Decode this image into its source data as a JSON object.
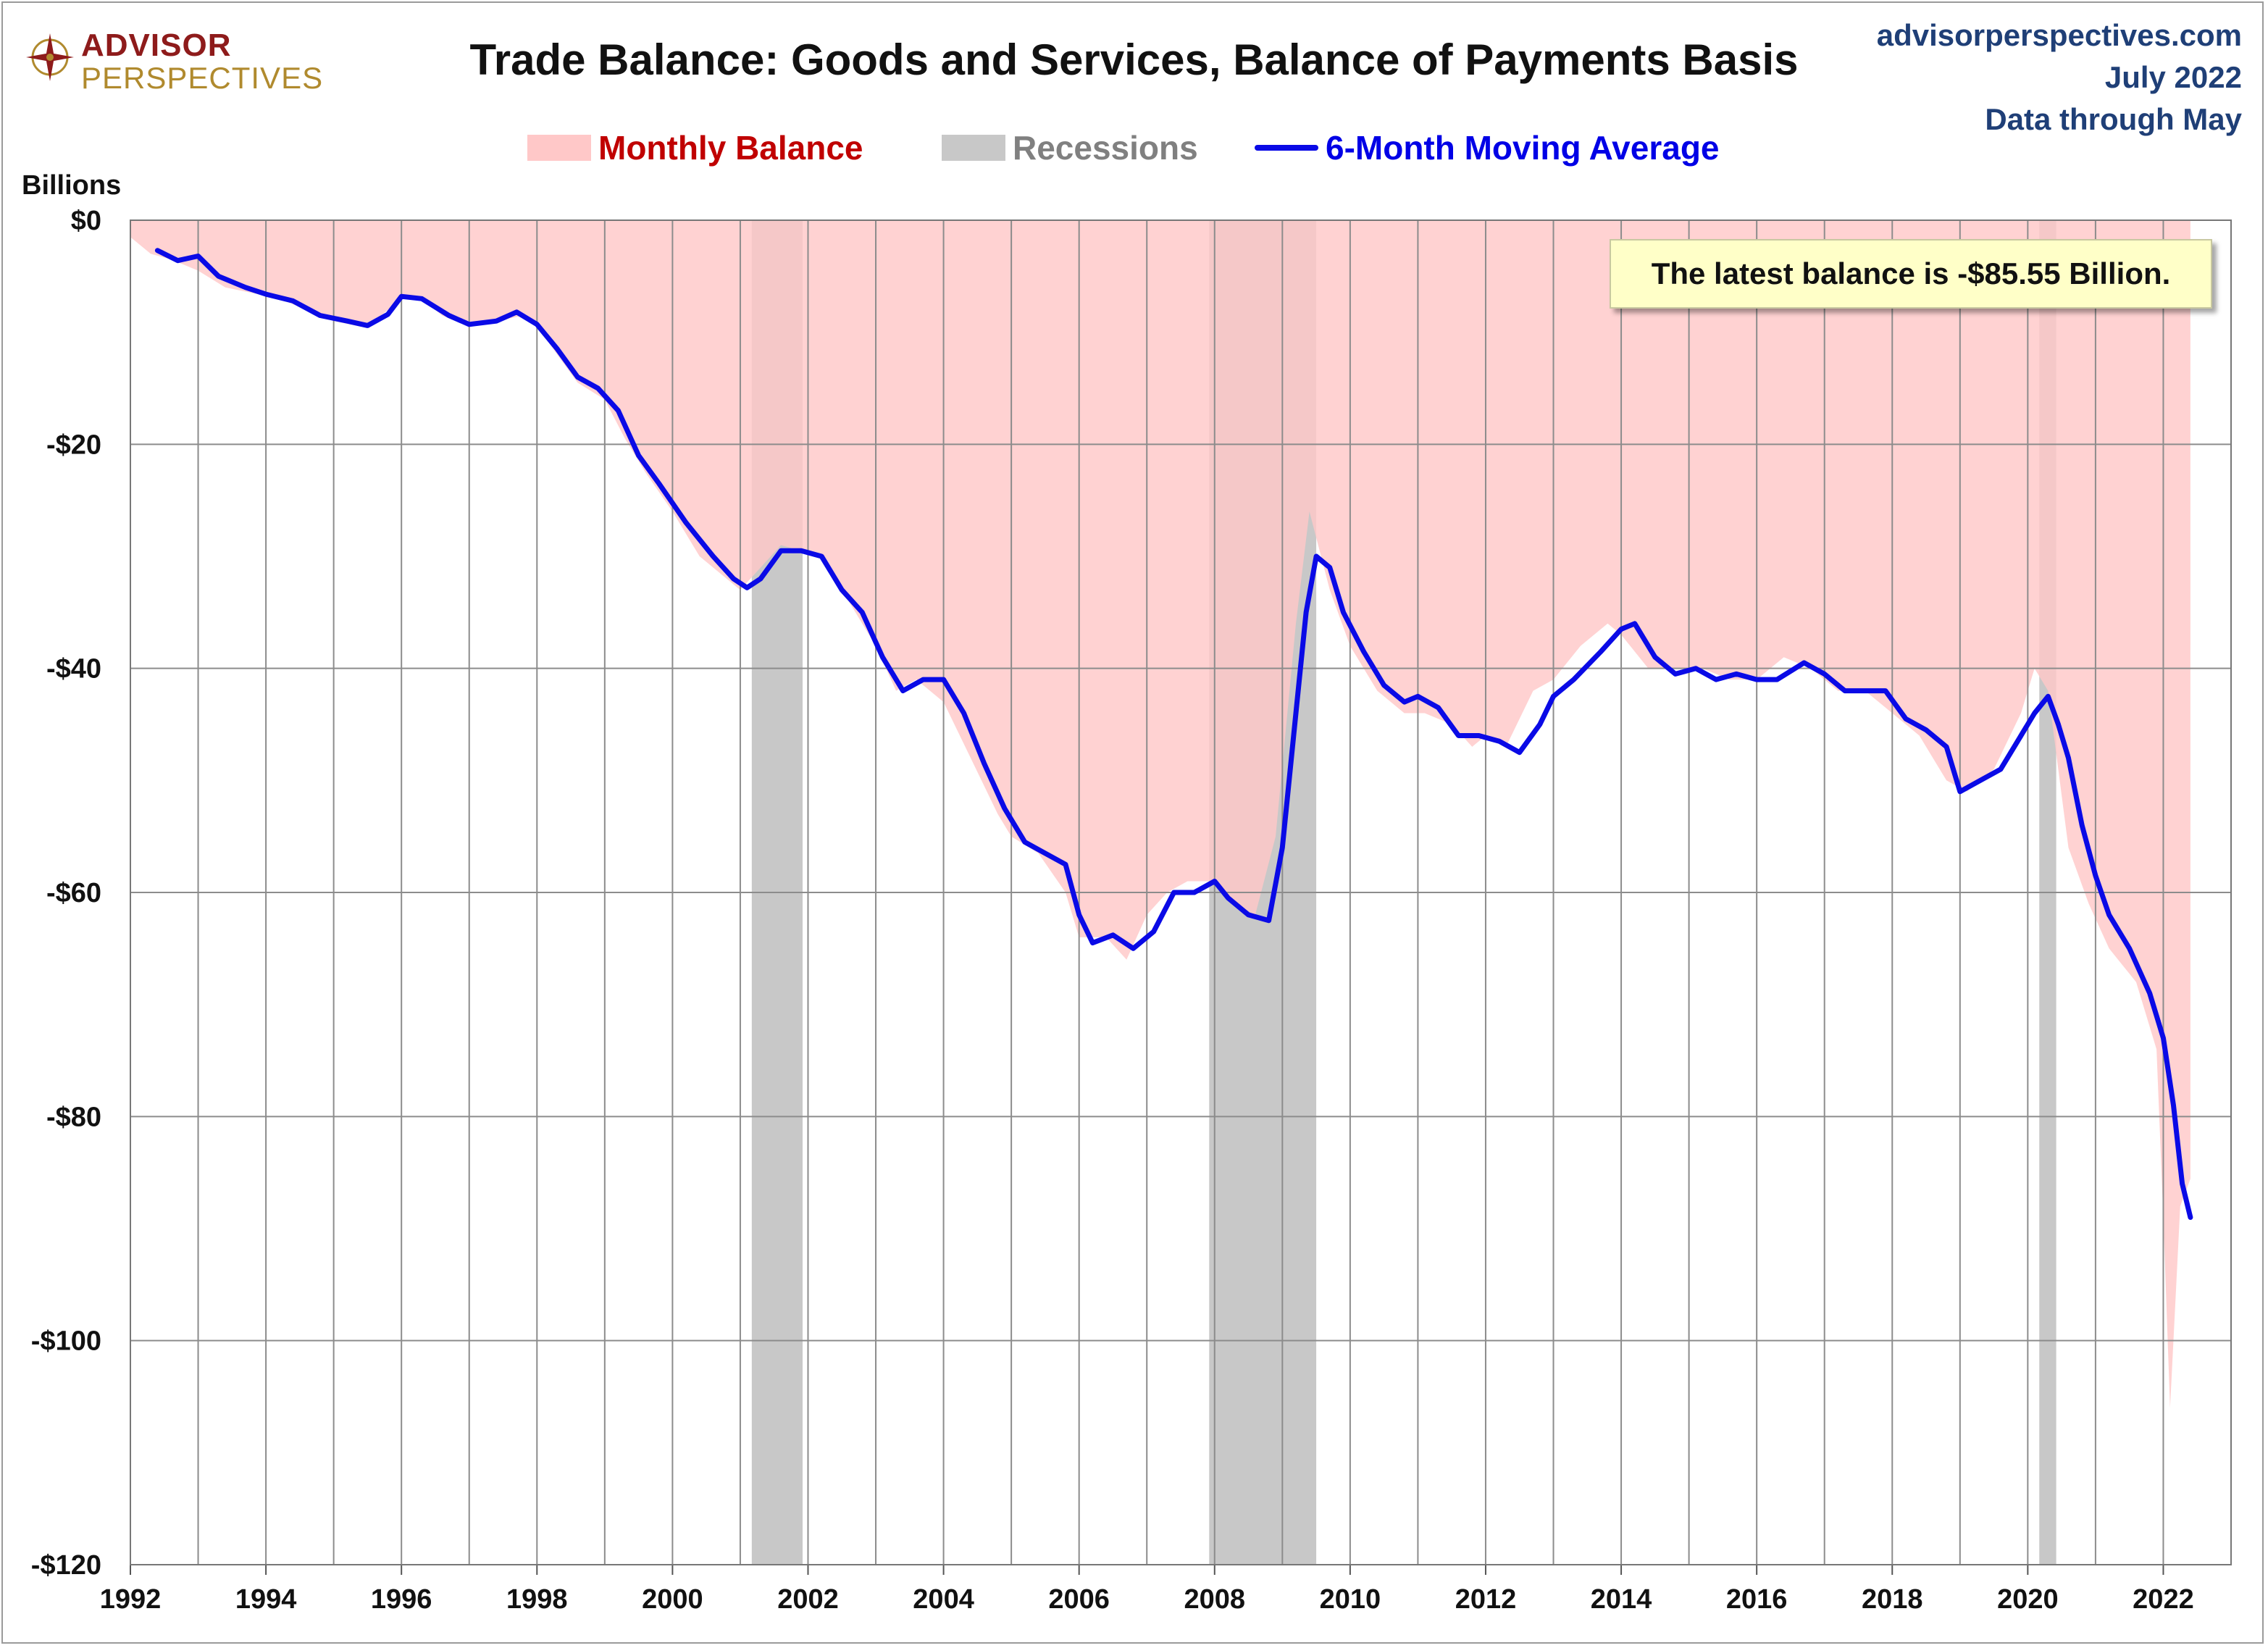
{
  "logo": {
    "line1": "ADVISOR",
    "line2": "PERSPECTIVES",
    "colors": {
      "primary": "#8e1b1b",
      "secondary": "#b08a2e"
    }
  },
  "header": {
    "title": "Trade Balance: Goods and Services, Balance of Payments Basis",
    "source": "advisorperspectives.com",
    "date": "July 2022",
    "coverage": "Data through May"
  },
  "legend": {
    "monthly": "Monthly Balance",
    "recessions": "Recessions",
    "moving_average": "6-Month Moving Average"
  },
  "annotation": {
    "text": "The latest balance is -$85.55 Billion."
  },
  "colors": {
    "fill": "#ffc8c8",
    "recession": "#c8c8c8",
    "line": "#0a0ae6",
    "grid": "#8c8c8c",
    "monthly_label": "#c00000",
    "recession_label": "#808080",
    "ma_label": "#0000e6"
  },
  "chart_data": {
    "type": "area",
    "title": "Trade Balance: Goods and Services, Balance of Payments Basis",
    "ylabel": "Billions",
    "xlabel": "",
    "xlim": [
      1992,
      2023
    ],
    "ylim": [
      -120,
      0
    ],
    "x_ticks": [
      "1992",
      "1994",
      "1996",
      "1998",
      "2000",
      "2002",
      "2004",
      "2006",
      "2008",
      "2010",
      "2012",
      "2014",
      "2016",
      "2018",
      "2020",
      "2022"
    ],
    "y_ticks": [
      "$0",
      "-$20",
      "-$40",
      "-$60",
      "-$80",
      "-$100",
      "-$120"
    ],
    "grid": true,
    "legend_placement": "top-center",
    "recessions": [
      [
        2001.17,
        2001.92
      ],
      [
        2007.92,
        2009.5
      ],
      [
        2020.17,
        2020.42
      ]
    ],
    "series": [
      {
        "name": "Monthly Balance",
        "type": "area",
        "points": [
          [
            1992.0,
            -1.5
          ],
          [
            1992.3,
            -3.0
          ],
          [
            1992.6,
            -3.5
          ],
          [
            1993.0,
            -4.5
          ],
          [
            1993.4,
            -6.0
          ],
          [
            1993.8,
            -6.5
          ],
          [
            1994.2,
            -7.0
          ],
          [
            1994.6,
            -8.0
          ],
          [
            1995.0,
            -9.0
          ],
          [
            1995.4,
            -9.5
          ],
          [
            1995.7,
            -8.5
          ],
          [
            1996.0,
            -7.0
          ],
          [
            1996.3,
            -7.0
          ],
          [
            1996.6,
            -8.5
          ],
          [
            1997.0,
            -9.5
          ],
          [
            1997.4,
            -9.0
          ],
          [
            1997.8,
            -8.5
          ],
          [
            1998.0,
            -9.5
          ],
          [
            1998.3,
            -12.0
          ],
          [
            1998.6,
            -14.5
          ],
          [
            1999.0,
            -16.0
          ],
          [
            1999.3,
            -19.5
          ],
          [
            1999.6,
            -22.5
          ],
          [
            2000.0,
            -26.0
          ],
          [
            2000.4,
            -30.0
          ],
          [
            2000.8,
            -32.0
          ],
          [
            2001.0,
            -33.0
          ],
          [
            2001.3,
            -31.0
          ],
          [
            2001.6,
            -29.0
          ],
          [
            2001.9,
            -29.5
          ],
          [
            2002.2,
            -30.0
          ],
          [
            2002.6,
            -34.0
          ],
          [
            2003.0,
            -38.0
          ],
          [
            2003.3,
            -42.0
          ],
          [
            2003.6,
            -41.0
          ],
          [
            2004.0,
            -43.0
          ],
          [
            2004.4,
            -48.0
          ],
          [
            2004.8,
            -53.0
          ],
          [
            2005.0,
            -55.0
          ],
          [
            2005.4,
            -56.5
          ],
          [
            2005.8,
            -60.0
          ],
          [
            2006.0,
            -64.0
          ],
          [
            2006.4,
            -64.0
          ],
          [
            2006.7,
            -66.0
          ],
          [
            2007.0,
            -62.0
          ],
          [
            2007.3,
            -60.0
          ],
          [
            2007.6,
            -59.0
          ],
          [
            2008.0,
            -59.0
          ],
          [
            2008.3,
            -61.0
          ],
          [
            2008.6,
            -62.0
          ],
          [
            2008.9,
            -55.0
          ],
          [
            2009.2,
            -36.0
          ],
          [
            2009.4,
            -26.0
          ],
          [
            2009.7,
            -33.0
          ],
          [
            2010.0,
            -38.0
          ],
          [
            2010.4,
            -42.0
          ],
          [
            2010.8,
            -44.0
          ],
          [
            2011.1,
            -44.0
          ],
          [
            2011.5,
            -45.0
          ],
          [
            2011.8,
            -47.0
          ],
          [
            2012.0,
            -46.0
          ],
          [
            2012.3,
            -47.0
          ],
          [
            2012.7,
            -42.0
          ],
          [
            2013.0,
            -41.0
          ],
          [
            2013.4,
            -38.0
          ],
          [
            2013.8,
            -36.0
          ],
          [
            2014.0,
            -37.0
          ],
          [
            2014.4,
            -40.0
          ],
          [
            2014.8,
            -40.0
          ],
          [
            2015.2,
            -40.0
          ],
          [
            2015.6,
            -41.0
          ],
          [
            2016.0,
            -41.0
          ],
          [
            2016.4,
            -39.0
          ],
          [
            2016.8,
            -40.0
          ],
          [
            2017.2,
            -42.0
          ],
          [
            2017.6,
            -42.0
          ],
          [
            2018.0,
            -44.0
          ],
          [
            2018.4,
            -46.0
          ],
          [
            2018.8,
            -50.0
          ],
          [
            2019.1,
            -51.0
          ],
          [
            2019.5,
            -49.0
          ],
          [
            2019.9,
            -44.0
          ],
          [
            2020.1,
            -40.0
          ],
          [
            2020.3,
            -42.0
          ],
          [
            2020.6,
            -56.0
          ],
          [
            2020.9,
            -61.0
          ],
          [
            2021.2,
            -65.0
          ],
          [
            2021.6,
            -68.0
          ],
          [
            2021.9,
            -74.0
          ],
          [
            2022.0,
            -89.0
          ],
          [
            2022.1,
            -106.0
          ],
          [
            2022.25,
            -88.0
          ],
          [
            2022.4,
            -85.55
          ]
        ]
      },
      {
        "name": "6-Month Moving Average",
        "type": "line",
        "points": [
          [
            1992.4,
            -2.7
          ],
          [
            1992.7,
            -3.6
          ],
          [
            1993.0,
            -3.2
          ],
          [
            1993.3,
            -5.0
          ],
          [
            1993.7,
            -6.0
          ],
          [
            1994.0,
            -6.6
          ],
          [
            1994.4,
            -7.2
          ],
          [
            1994.8,
            -8.5
          ],
          [
            1995.2,
            -9.0
          ],
          [
            1995.5,
            -9.4
          ],
          [
            1995.8,
            -8.4
          ],
          [
            1996.0,
            -6.8
          ],
          [
            1996.3,
            -7.0
          ],
          [
            1996.7,
            -8.5
          ],
          [
            1997.0,
            -9.3
          ],
          [
            1997.4,
            -9.0
          ],
          [
            1997.7,
            -8.2
          ],
          [
            1998.0,
            -9.3
          ],
          [
            1998.3,
            -11.5
          ],
          [
            1998.6,
            -14.0
          ],
          [
            1998.9,
            -15.0
          ],
          [
            1999.2,
            -17.0
          ],
          [
            1999.5,
            -21.0
          ],
          [
            1999.8,
            -23.5
          ],
          [
            2000.2,
            -27.0
          ],
          [
            2000.6,
            -30.0
          ],
          [
            2000.9,
            -32.0
          ],
          [
            2001.1,
            -32.8
          ],
          [
            2001.3,
            -32.0
          ],
          [
            2001.6,
            -29.5
          ],
          [
            2001.9,
            -29.5
          ],
          [
            2002.2,
            -30.0
          ],
          [
            2002.5,
            -33.0
          ],
          [
            2002.8,
            -35.0
          ],
          [
            2003.1,
            -39.0
          ],
          [
            2003.4,
            -42.0
          ],
          [
            2003.7,
            -41.0
          ],
          [
            2004.0,
            -41.0
          ],
          [
            2004.3,
            -44.0
          ],
          [
            2004.6,
            -48.5
          ],
          [
            2004.9,
            -52.5
          ],
          [
            2005.2,
            -55.5
          ],
          [
            2005.5,
            -56.5
          ],
          [
            2005.8,
            -57.5
          ],
          [
            2006.0,
            -62.0
          ],
          [
            2006.2,
            -64.5
          ],
          [
            2006.5,
            -63.8
          ],
          [
            2006.8,
            -65.0
          ],
          [
            2007.1,
            -63.5
          ],
          [
            2007.4,
            -60.0
          ],
          [
            2007.7,
            -60.0
          ],
          [
            2008.0,
            -59.0
          ],
          [
            2008.2,
            -60.5
          ],
          [
            2008.5,
            -62.0
          ],
          [
            2008.8,
            -62.5
          ],
          [
            2009.0,
            -56.0
          ],
          [
            2009.2,
            -44.0
          ],
          [
            2009.35,
            -35.0
          ],
          [
            2009.5,
            -30.0
          ],
          [
            2009.7,
            -31.0
          ],
          [
            2009.9,
            -35.0
          ],
          [
            2010.2,
            -38.5
          ],
          [
            2010.5,
            -41.5
          ],
          [
            2010.8,
            -43.0
          ],
          [
            2011.0,
            -42.5
          ],
          [
            2011.3,
            -43.5
          ],
          [
            2011.6,
            -46.0
          ],
          [
            2011.9,
            -46.0
          ],
          [
            2012.2,
            -46.5
          ],
          [
            2012.5,
            -47.5
          ],
          [
            2012.8,
            -45.0
          ],
          [
            2013.0,
            -42.5
          ],
          [
            2013.3,
            -41.0
          ],
          [
            2013.7,
            -38.5
          ],
          [
            2014.0,
            -36.5
          ],
          [
            2014.2,
            -36.0
          ],
          [
            2014.5,
            -39.0
          ],
          [
            2014.8,
            -40.5
          ],
          [
            2015.1,
            -40.0
          ],
          [
            2015.4,
            -41.0
          ],
          [
            2015.7,
            -40.5
          ],
          [
            2016.0,
            -41.0
          ],
          [
            2016.3,
            -41.0
          ],
          [
            2016.7,
            -39.5
          ],
          [
            2017.0,
            -40.5
          ],
          [
            2017.3,
            -42.0
          ],
          [
            2017.6,
            -42.0
          ],
          [
            2017.9,
            -42.0
          ],
          [
            2018.2,
            -44.5
          ],
          [
            2018.5,
            -45.5
          ],
          [
            2018.8,
            -47.0
          ],
          [
            2019.0,
            -51.0
          ],
          [
            2019.3,
            -50.0
          ],
          [
            2019.6,
            -49.0
          ],
          [
            2019.9,
            -46.0
          ],
          [
            2020.1,
            -44.0
          ],
          [
            2020.3,
            -42.5
          ],
          [
            2020.45,
            -45.0
          ],
          [
            2020.6,
            -48.0
          ],
          [
            2020.8,
            -54.0
          ],
          [
            2021.0,
            -58.5
          ],
          [
            2021.2,
            -62.0
          ],
          [
            2021.5,
            -65.0
          ],
          [
            2021.8,
            -69.0
          ],
          [
            2022.0,
            -73.0
          ],
          [
            2022.15,
            -79.0
          ],
          [
            2022.28,
            -86.0
          ],
          [
            2022.4,
            -89.0
          ]
        ]
      }
    ]
  }
}
